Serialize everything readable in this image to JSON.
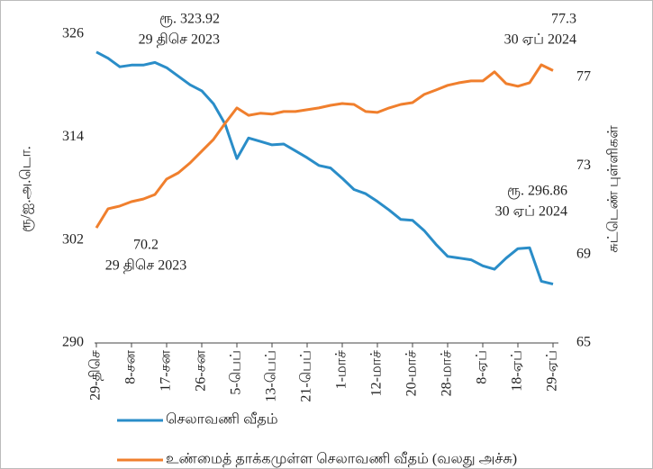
{
  "chart_data": {
    "type": "line",
    "y_label": "ரூ/ஐ.அ.டொ.",
    "y2_label": "சுட்டெண் புள்ளிகள்",
    "categories": [
      "29-திசெ",
      null,
      null,
      "8-சன",
      null,
      null,
      "17-சன",
      null,
      null,
      "26-சன",
      null,
      null,
      "5-பெப்",
      null,
      null,
      "13-பெப்",
      null,
      null,
      "21-பெப்",
      null,
      null,
      "1-மாச்",
      null,
      null,
      "12-மாச்",
      null,
      null,
      "20-மாச்",
      null,
      null,
      "28-மாச்",
      null,
      null,
      "8-ஏப்",
      null,
      null,
      "18-ஏப்",
      null,
      null,
      "29-ஏப்"
    ],
    "series": [
      {
        "name": "செலாவணி வீதம்",
        "color": "#2a8dc8",
        "axis": "y",
        "values": [
          323.92,
          323.2,
          322.2,
          322.4,
          322.4,
          322.7,
          322.1,
          321.1,
          320.1,
          319.4,
          317.9,
          315.5,
          311.5,
          313.9,
          313.5,
          313.1,
          313.2,
          312.4,
          311.6,
          310.7,
          310.4,
          309.2,
          307.9,
          307.4,
          306.5,
          305.5,
          304.4,
          304.3,
          303.1,
          301.5,
          300.1,
          299.9,
          299.7,
          299.0,
          298.6,
          299.9,
          301.0,
          301.1,
          297.2,
          296.86
        ]
      },
      {
        "name": "உண்மைத் தாக்கமுள்ள செலாவணி வீதம் (வலது அச்சு)",
        "color": "#f07f2d",
        "axis": "y2",
        "values": [
          70.2,
          71.06,
          71.18,
          71.38,
          71.5,
          71.7,
          72.4,
          72.68,
          73.13,
          73.66,
          74.19,
          74.92,
          75.61,
          75.28,
          75.37,
          75.33,
          75.45,
          75.45,
          75.53,
          75.61,
          75.73,
          75.81,
          75.77,
          75.45,
          75.41,
          75.61,
          75.77,
          75.85,
          76.22,
          76.42,
          76.63,
          76.75,
          76.83,
          76.83,
          77.24,
          76.71,
          76.59,
          76.75,
          77.56,
          77.3
        ]
      }
    ],
    "ylim": [
      290,
      326
    ],
    "yticks": [
      290,
      302,
      314,
      326
    ],
    "y2lim": [
      65,
      78.94
    ],
    "y2ticks": [
      65,
      69,
      73,
      77
    ],
    "annotations": [
      [
        "ரூ.  323.92",
        "29  திசெ  2023"
      ],
      [
        "77.3",
        "30  ஏப்  2024"
      ],
      [
        "ரூ.  296.86",
        "30  ஏப்  2024"
      ],
      [
        "70.2",
        "29  திசெ  2023"
      ]
    ]
  }
}
